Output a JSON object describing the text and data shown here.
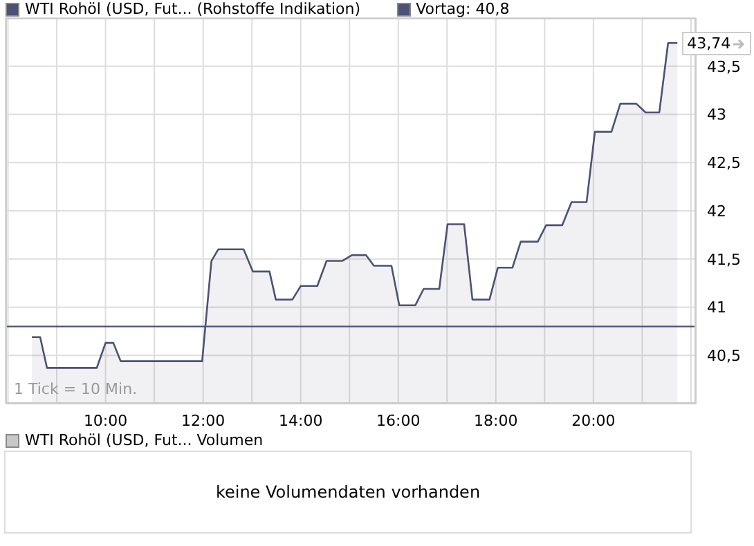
{
  "chart_data": {
    "type": "area",
    "x": [
      8.49,
      8.66,
      8.8,
      9.23,
      9.82,
      10.0,
      10.16,
      10.31,
      11.98,
      12.17,
      12.31,
      12.83,
      13.02,
      13.36,
      13.49,
      13.83,
      14.0,
      14.34,
      14.53,
      14.85,
      15.05,
      15.34,
      15.5,
      15.86,
      16.02,
      16.35,
      16.52,
      16.84,
      17.01,
      17.35,
      17.52,
      17.87,
      18.04,
      18.34,
      18.51,
      18.86,
      19.03,
      19.36,
      19.55,
      19.86,
      20.03,
      20.37,
      20.55,
      20.88,
      21.07,
      21.35,
      21.53,
      21.72
    ],
    "series": [
      {
        "name": "WTI Rohöl (USD, Fut... (Rohstoffe Indikation)",
        "color": "#4b5275",
        "values": [
          40.69,
          40.69,
          40.37,
          40.37,
          40.37,
          40.63,
          40.63,
          40.44,
          40.44,
          41.48,
          41.6,
          41.6,
          41.37,
          41.37,
          41.08,
          41.08,
          41.22,
          41.22,
          41.48,
          41.48,
          41.54,
          41.54,
          41.43,
          41.43,
          41.02,
          41.02,
          41.19,
          41.19,
          41.86,
          41.86,
          41.08,
          41.08,
          41.41,
          41.41,
          41.68,
          41.68,
          41.85,
          41.85,
          42.09,
          42.09,
          42.82,
          42.82,
          43.11,
          43.11,
          43.02,
          43.02,
          43.74,
          43.74
        ]
      }
    ],
    "xlim": [
      7.95,
      22.1
    ],
    "xticks": [
      {
        "value": 8,
        "label": null
      },
      {
        "value": 9,
        "label": null
      },
      {
        "value": 10,
        "label": "10:00"
      },
      {
        "value": 11,
        "label": null
      },
      {
        "value": 12,
        "label": "12:00"
      },
      {
        "value": 13,
        "label": null
      },
      {
        "value": 14,
        "label": "14:00"
      },
      {
        "value": 15,
        "label": null
      },
      {
        "value": 16,
        "label": "16:00"
      },
      {
        "value": 17,
        "label": null
      },
      {
        "value": 18,
        "label": "18:00"
      },
      {
        "value": 19,
        "label": null
      },
      {
        "value": 20,
        "label": "20:00"
      },
      {
        "value": 21,
        "label": null
      },
      {
        "value": 22,
        "label": null
      }
    ],
    "ylim": [
      40,
      44
    ],
    "yticks": [
      {
        "value": 40.5,
        "label": "40,5"
      },
      {
        "value": 41,
        "label": "41"
      },
      {
        "value": 41.5,
        "label": "41,5"
      },
      {
        "value": 42,
        "label": "42"
      },
      {
        "value": 42.5,
        "label": "42,5"
      },
      {
        "value": 43,
        "label": "43"
      },
      {
        "value": 43.5,
        "label": "43,5"
      }
    ],
    "ref_lines": [
      {
        "axis": "y",
        "value": 40.8,
        "label": "Vortag: 40,8",
        "color": "#4b5275"
      }
    ],
    "annotations": [
      "1 Tick = 10 Min.",
      "WTI Rohöl (USD, Fut... Volumen",
      "keine Volumendaten vorhanden",
      {
        "text": "43,74",
        "x": 21.72,
        "y": 43.74
      }
    ],
    "grid": true,
    "legend": "top left"
  }
}
